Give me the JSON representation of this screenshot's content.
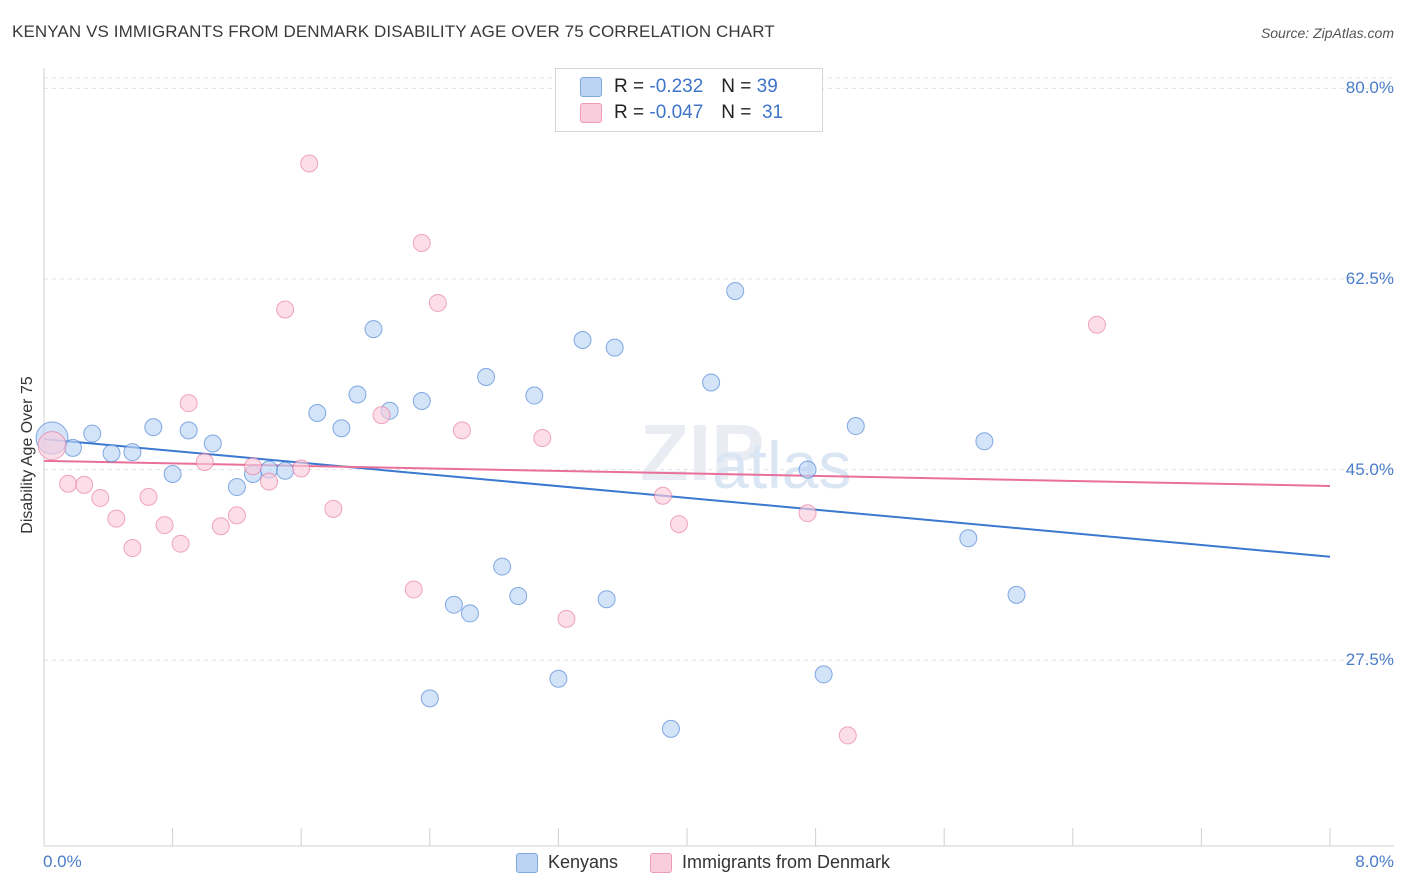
{
  "title": "KENYAN VS IMMIGRANTS FROM DENMARK DISABILITY AGE OVER 75 CORRELATION CHART",
  "source": "Source: ZipAtlas.com",
  "colors": {
    "blue": "#3b78d0",
    "pink": "#e8709a",
    "blue_fill": "#bcd4f4",
    "pink_fill": "#f9cddb",
    "tick": "#4a7cc9"
  },
  "legend": {
    "row1": {
      "r_label": "R = ",
      "r_value": "-0.232",
      "n_label": "N = ",
      "n_value": "39"
    },
    "row2": {
      "r_label": "R = ",
      "r_value": "-0.047",
      "n_label": "N = ",
      "n_value": "31"
    }
  },
  "bottom_legend": {
    "kenyans": "Kenyans",
    "denmark": "Immigrants from Denmark"
  },
  "chart_data": {
    "type": "scatter",
    "title": "KENYAN VS IMMIGRANTS FROM DENMARK DISABILITY AGE OVER 75 CORRELATION CHART",
    "xlabel": "",
    "ylabel": "Disability Age Over 75",
    "xlim": [
      0.0,
      8.0
    ],
    "ylim": [
      11.0,
      81.5
    ],
    "x_ticks": [
      "0.0%",
      "8.0%"
    ],
    "y_ticks": [
      {
        "value": 80.0,
        "label": "80.0%"
      },
      {
        "value": 62.5,
        "label": "62.5%"
      },
      {
        "value": 45.0,
        "label": "45.0%"
      },
      {
        "value": 27.5,
        "label": "27.5%"
      }
    ],
    "grid": true,
    "legend_position": "top-center",
    "series": [
      {
        "name": "Kenyans",
        "r": -0.232,
        "n": 39,
        "trend": [
          [
            0.0,
            47.8
          ],
          [
            8.0,
            37.0
          ]
        ],
        "points": [
          [
            0.05,
            47.9
          ],
          [
            0.18,
            47.0
          ],
          [
            0.3,
            48.3
          ],
          [
            0.42,
            46.5
          ],
          [
            0.55,
            46.6
          ],
          [
            0.68,
            48.9
          ],
          [
            0.8,
            44.6
          ],
          [
            0.9,
            48.6
          ],
          [
            1.05,
            47.4
          ],
          [
            1.2,
            43.4
          ],
          [
            1.3,
            44.6
          ],
          [
            1.4,
            45.0
          ],
          [
            1.5,
            44.9
          ],
          [
            1.7,
            50.2
          ],
          [
            1.85,
            48.8
          ],
          [
            1.95,
            51.9
          ],
          [
            2.05,
            57.9
          ],
          [
            2.15,
            50.4
          ],
          [
            2.35,
            51.3
          ],
          [
            2.4,
            24.0
          ],
          [
            2.55,
            32.6
          ],
          [
            2.65,
            31.8
          ],
          [
            2.75,
            53.5
          ],
          [
            2.85,
            36.1
          ],
          [
            2.95,
            33.4
          ],
          [
            3.05,
            51.8
          ],
          [
            3.2,
            25.8
          ],
          [
            3.35,
            56.9
          ],
          [
            3.5,
            33.1
          ],
          [
            3.55,
            56.2
          ],
          [
            3.9,
            21.2
          ],
          [
            4.15,
            53.0
          ],
          [
            4.3,
            61.4
          ],
          [
            4.75,
            45.0
          ],
          [
            4.85,
            26.2
          ],
          [
            5.05,
            49.0
          ],
          [
            5.75,
            38.7
          ],
          [
            5.85,
            47.6
          ],
          [
            6.05,
            33.5
          ]
        ]
      },
      {
        "name": "Immigrants from Denmark",
        "r": -0.047,
        "n": 31,
        "trend": [
          [
            0.0,
            45.8
          ],
          [
            8.0,
            43.5
          ]
        ],
        "points": [
          [
            0.05,
            47.2
          ],
          [
            0.15,
            43.7
          ],
          [
            0.25,
            43.6
          ],
          [
            0.35,
            42.4
          ],
          [
            0.45,
            40.5
          ],
          [
            0.55,
            37.8
          ],
          [
            0.65,
            42.5
          ],
          [
            0.75,
            39.9
          ],
          [
            0.85,
            38.2
          ],
          [
            0.9,
            51.1
          ],
          [
            1.0,
            45.7
          ],
          [
            1.1,
            39.8
          ],
          [
            1.2,
            40.8
          ],
          [
            1.3,
            45.3
          ],
          [
            1.4,
            43.9
          ],
          [
            1.5,
            59.7
          ],
          [
            1.6,
            45.1
          ],
          [
            1.65,
            73.1
          ],
          [
            1.8,
            41.4
          ],
          [
            2.1,
            50.0
          ],
          [
            2.3,
            34.0
          ],
          [
            2.35,
            65.8
          ],
          [
            2.45,
            60.3
          ],
          [
            2.6,
            48.6
          ],
          [
            3.1,
            47.9
          ],
          [
            3.25,
            31.3
          ],
          [
            3.85,
            42.6
          ],
          [
            3.95,
            40.0
          ],
          [
            4.75,
            41.0
          ],
          [
            5.0,
            20.6
          ],
          [
            6.55,
            58.3
          ]
        ]
      }
    ]
  }
}
